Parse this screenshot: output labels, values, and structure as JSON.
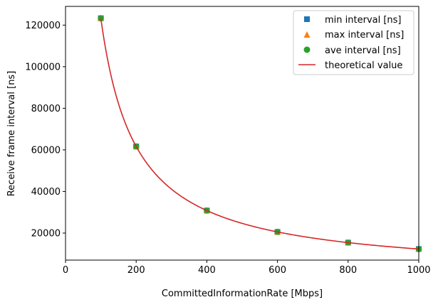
{
  "chart_data": {
    "type": "scatter",
    "xlabel": "CommittedInformationRate [Mbps]",
    "ylabel": "Receive frame interval [ns]",
    "xlim": [
      0,
      1000
    ],
    "ylim": [
      7000,
      129000
    ],
    "xticks": [
      "0",
      "200",
      "400",
      "600",
      "800",
      "1000"
    ],
    "yticks": [
      "20000",
      "40000",
      "60000",
      "80000",
      "100000",
      "120000"
    ],
    "legend_position": "top-right",
    "grid": false,
    "x": [
      100,
      200,
      400,
      600,
      800,
      1000
    ],
    "series": [
      {
        "name": "min interval [ns]",
        "marker": "square",
        "color": "#1f77b4",
        "values": [
          123300,
          61650,
          30825,
          20550,
          15412,
          12330
        ]
      },
      {
        "name": "max interval [ns]",
        "marker": "triangle",
        "color": "#ff7f0e",
        "values": [
          123300,
          61650,
          30825,
          20550,
          15412,
          12330
        ]
      },
      {
        "name": "ave interval [ns]",
        "marker": "circle",
        "color": "#2ca02c",
        "values": [
          123300,
          61650,
          30825,
          20550,
          15412,
          12330
        ]
      },
      {
        "name": "theoretical value",
        "marker": "line",
        "color": "#d62728",
        "formula_numerator": 12330000,
        "x_range": [
          100,
          1000
        ]
      }
    ]
  }
}
